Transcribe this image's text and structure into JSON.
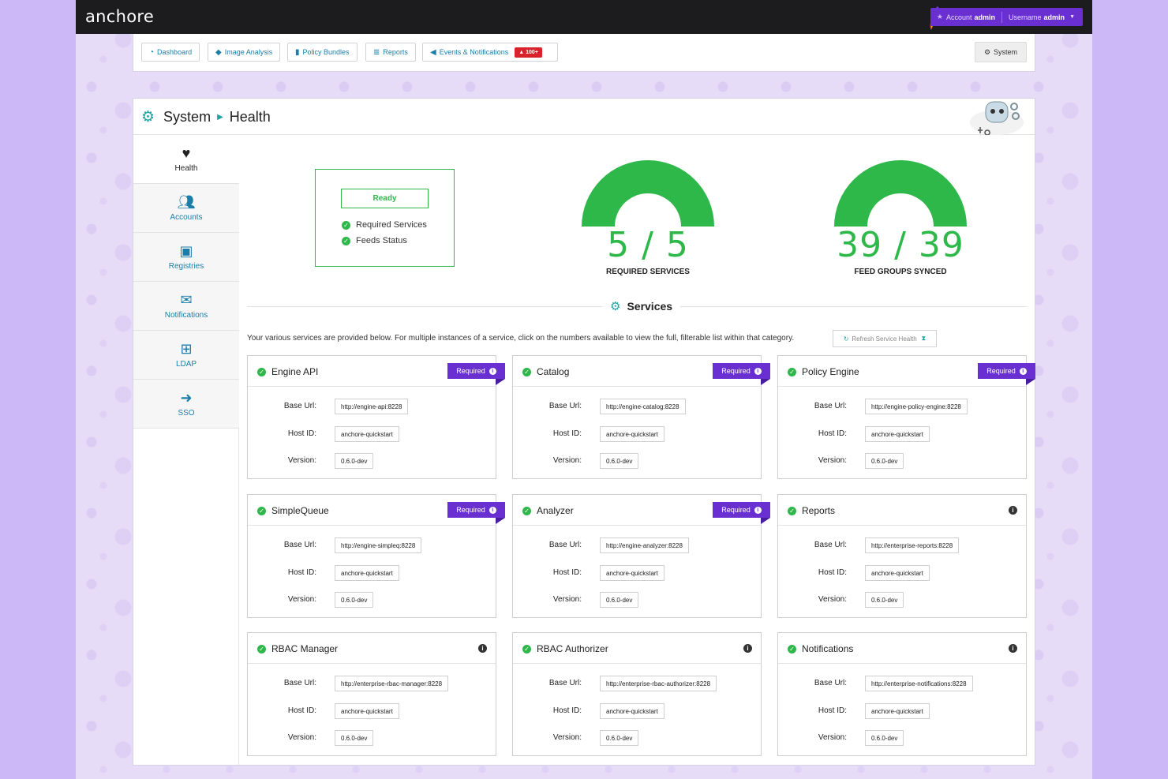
{
  "app": {
    "logo": "anchore",
    "account_label": "Account",
    "account_value": "admin",
    "username_label": "Username",
    "username_value": "admin"
  },
  "nav": {
    "items": [
      {
        "label": "Dashboard",
        "icon": "dashboard-icon"
      },
      {
        "label": "Image Analysis",
        "icon": "tag-icon"
      },
      {
        "label": "Policy Bundles",
        "icon": "briefcase-icon"
      },
      {
        "label": "Reports",
        "icon": "list-icon"
      },
      {
        "label": "Events & Notifications",
        "icon": "bullhorn-icon"
      }
    ],
    "events_badge": "100+",
    "system_label": "System"
  },
  "breadcrumb": {
    "section": "System",
    "page": "Health"
  },
  "sidebar": {
    "items": [
      {
        "label": "Health",
        "icon": "heartbeat-icon",
        "active": true
      },
      {
        "label": "Accounts",
        "icon": "users-icon"
      },
      {
        "label": "Registries",
        "icon": "address-book-icon"
      },
      {
        "label": "Notifications",
        "icon": "envelope-icon"
      },
      {
        "label": "LDAP",
        "icon": "sitemap-icon"
      },
      {
        "label": "SSO",
        "icon": "sign-in-icon"
      }
    ]
  },
  "status": {
    "ready_label": "Ready",
    "checks": [
      "Required Services",
      "Feeds Status"
    ]
  },
  "gauges": [
    {
      "value": "5 / 5",
      "label": "REQUIRED SERVICES",
      "fraction": 1.0
    },
    {
      "value": "39 / 39",
      "label": "FEED GROUPS SYNCED",
      "fraction": 1.0
    }
  ],
  "services_section": {
    "title": "Services",
    "description": "Your various services are provided below. For multiple instances of a service, click on the numbers available to view the full, filterable list within that category.",
    "refresh_label": "Refresh Service Health"
  },
  "labels": {
    "base_url": "Base Url:",
    "host_id": "Host ID:",
    "version": "Version:",
    "required": "Required"
  },
  "services": [
    {
      "name": "Engine API",
      "required": true,
      "base_url": "http://engine-api:8228",
      "host_id": "anchore-quickstart",
      "version": "0.6.0-dev"
    },
    {
      "name": "Catalog",
      "required": true,
      "base_url": "http://engine-catalog:8228",
      "host_id": "anchore-quickstart",
      "version": "0.6.0-dev"
    },
    {
      "name": "Policy Engine",
      "required": true,
      "base_url": "http://engine-policy-engine:8228",
      "host_id": "anchore-quickstart",
      "version": "0.6.0-dev"
    },
    {
      "name": "SimpleQueue",
      "required": true,
      "base_url": "http://engine-simpleq:8228",
      "host_id": "anchore-quickstart",
      "version": "0.6.0-dev"
    },
    {
      "name": "Analyzer",
      "required": true,
      "base_url": "http://engine-analyzer:8228",
      "host_id": "anchore-quickstart",
      "version": "0.6.0-dev"
    },
    {
      "name": "Reports",
      "required": false,
      "base_url": "http://enterprise-reports:8228",
      "host_id": "anchore-quickstart",
      "version": "0.6.0-dev"
    },
    {
      "name": "RBAC Manager",
      "required": false,
      "base_url": "http://enterprise-rbac-manager:8228",
      "host_id": "anchore-quickstart",
      "version": "0.6.0-dev"
    },
    {
      "name": "RBAC Authorizer",
      "required": false,
      "base_url": "http://enterprise-rbac-authorizer:8228",
      "host_id": "anchore-quickstart",
      "version": "0.6.0-dev"
    },
    {
      "name": "Notifications",
      "required": false,
      "base_url": "http://enterprise-notifications:8228",
      "host_id": "anchore-quickstart",
      "version": "0.6.0-dev"
    }
  ],
  "colors": {
    "accent_purple": "#6a2fd0",
    "ok_green": "#2fb84a",
    "link_blue": "#1b7ea8",
    "teal": "#1ea3a3",
    "alert_red": "#d9232a"
  }
}
